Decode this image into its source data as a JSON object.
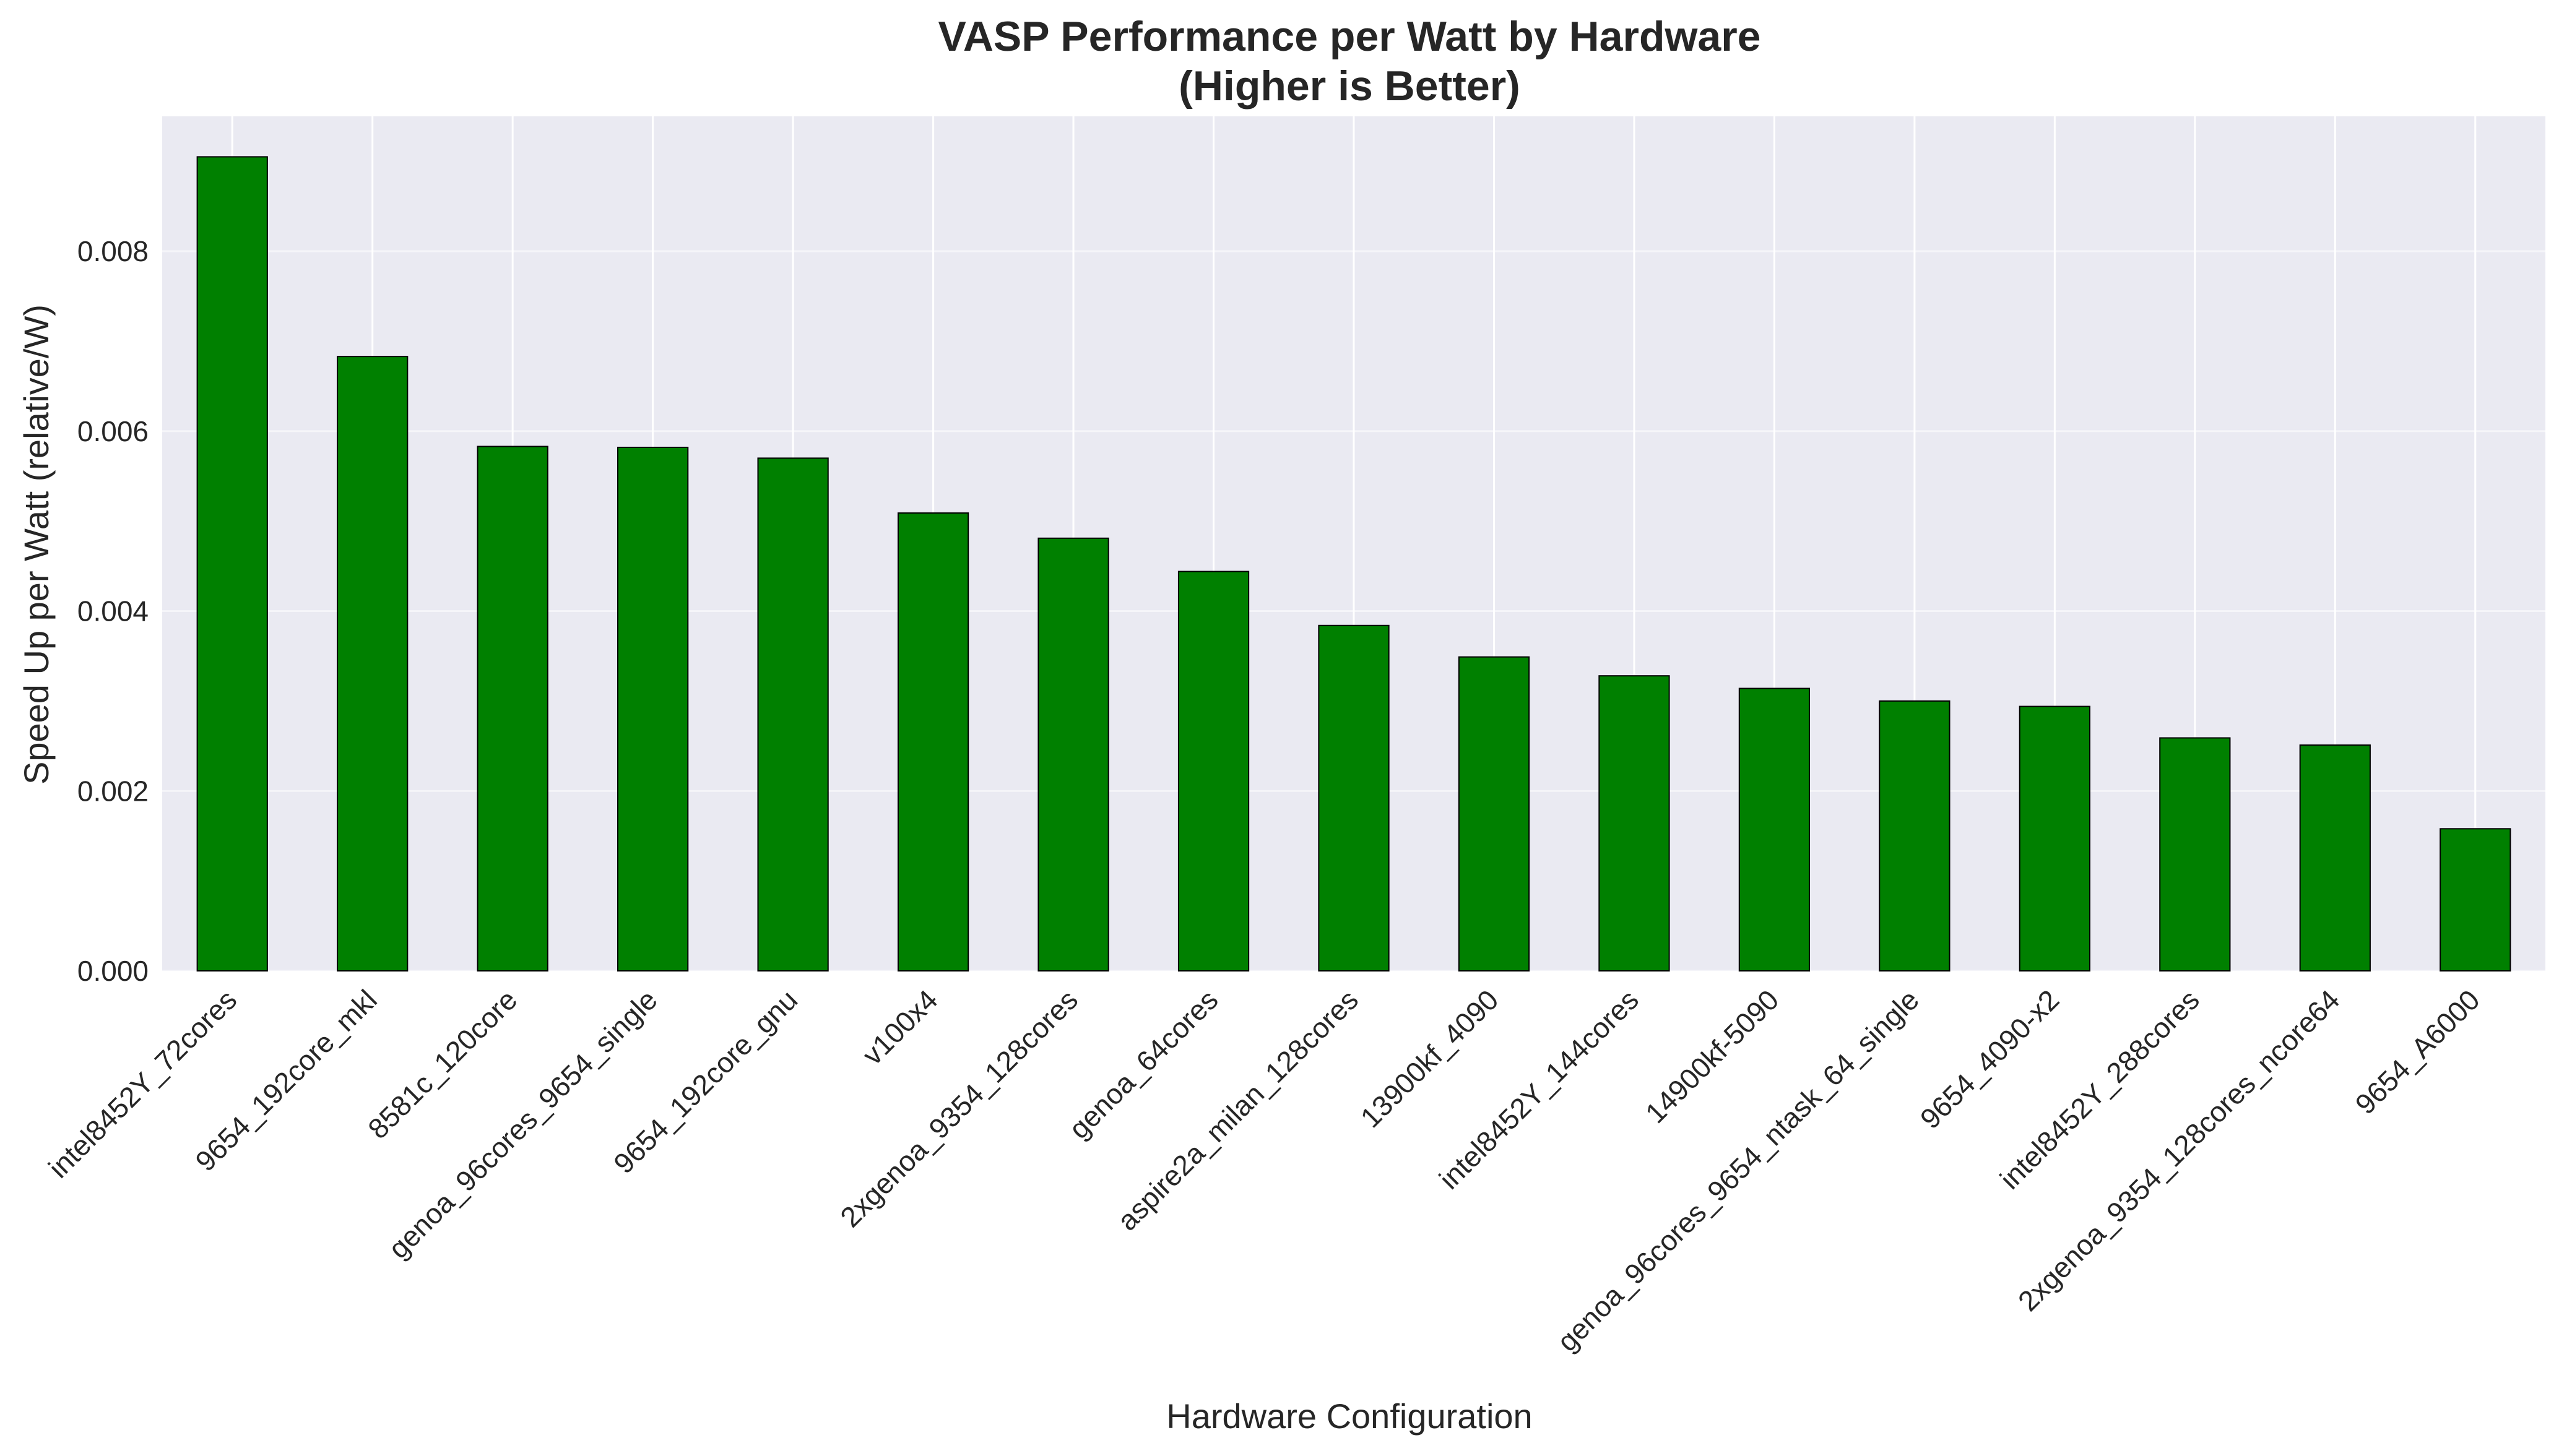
{
  "chart_data": {
    "type": "bar",
    "title_line1": "VASP Performance per Watt by Hardware",
    "title_line2": "(Higher is Better)",
    "xlabel": "Hardware Configuration",
    "ylabel": "Speed Up per Watt (relative/W)",
    "ylim": [
      0,
      0.0095
    ],
    "yticks": [
      "0.000",
      "0.002",
      "0.004",
      "0.006",
      "0.008"
    ],
    "ytick_values": [
      0,
      0.002,
      0.004,
      0.006,
      0.008
    ],
    "grid": true,
    "bar_color": "#008000",
    "bar_edge_color": "#000000",
    "background_color": "#EAEAF2",
    "categories": [
      "intel8452Y_72cores",
      "9654_192core_mkl",
      "8581c_120core",
      "genoa_96cores_9654_single",
      "9654_192core_gnu",
      "v100x4",
      "2xgenoa_9354_128cores",
      "genoa_64cores",
      "aspire2a_milan_128cores",
      "13900kf_4090",
      "intel8452Y_144cores",
      "14900kf-5090",
      "genoa_96cores_9654_ntask_64_single",
      "9654_4090-x2",
      "intel8452Y_288cores",
      "2xgenoa_9354_128cores_ncore64",
      "9654_A6000"
    ],
    "values": [
      0.00905,
      0.00683,
      0.00583,
      0.00582,
      0.0057,
      0.00509,
      0.00481,
      0.00444,
      0.00384,
      0.00349,
      0.00328,
      0.00314,
      0.003,
      0.00294,
      0.00259,
      0.00251,
      0.00158
    ]
  }
}
